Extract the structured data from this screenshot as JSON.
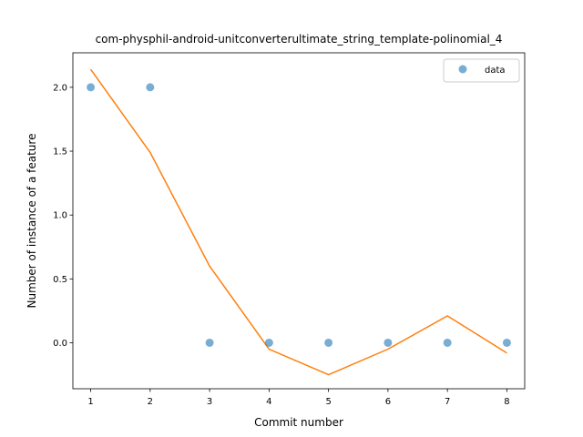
{
  "chart_data": {
    "type": "scatter",
    "title": "com-physphil-android-unitconverterultimate_string_template-polinomial_4",
    "xlabel": "Commit number",
    "ylabel": "Number of instance of a feature",
    "xlim": [
      0.7,
      8.3
    ],
    "ylim": [
      -0.36,
      2.27
    ],
    "xticks": [
      1,
      2,
      3,
      4,
      5,
      6,
      7,
      8
    ],
    "yticks": [
      0.0,
      0.5,
      1.0,
      1.5,
      2.0
    ],
    "ytick_labels": [
      "0.0",
      "0.5",
      "1.0",
      "1.5",
      "2.0"
    ],
    "grid": false,
    "legend_position": "top-right",
    "series": [
      {
        "name": "data",
        "kind": "scatter",
        "color": "#1f77b4",
        "x": [
          1,
          2,
          3,
          4,
          5,
          6,
          7,
          8
        ],
        "y": [
          2,
          2,
          0,
          0,
          0,
          0,
          0,
          0
        ]
      },
      {
        "kind": "line",
        "color": "#ff7f0e",
        "x": [
          1,
          2,
          3,
          4,
          5,
          6,
          7,
          8
        ],
        "y": [
          2.14,
          1.49,
          0.6,
          -0.05,
          -0.25,
          -0.05,
          0.21,
          -0.08
        ]
      }
    ]
  }
}
